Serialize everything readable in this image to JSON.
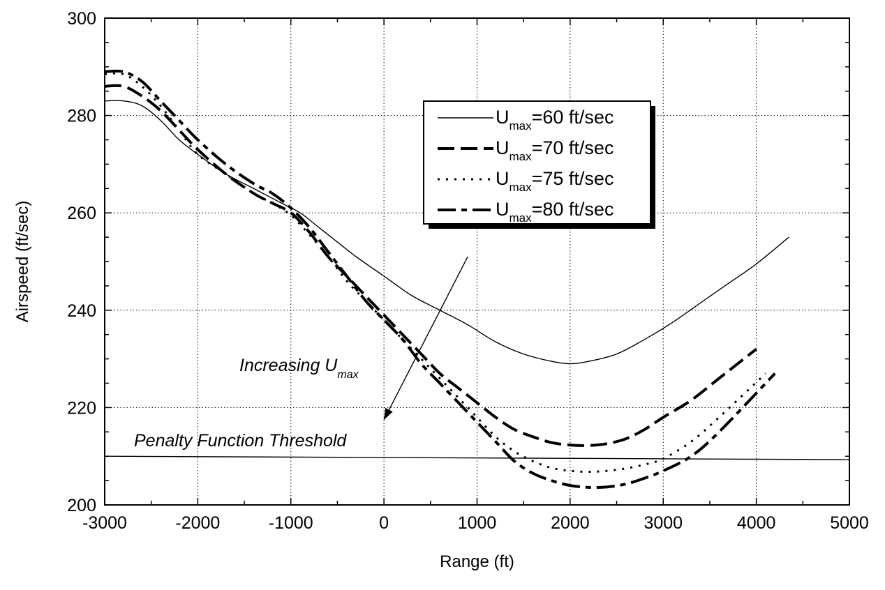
{
  "chart_data": {
    "type": "line",
    "title": "",
    "xlabel": "Range (ft)",
    "ylabel": "Airspeed (ft/sec)",
    "xlim": [
      -3000,
      5000
    ],
    "ylim": [
      200,
      300
    ],
    "xticks": [
      -3000,
      -2000,
      -1000,
      0,
      1000,
      2000,
      3000,
      4000,
      5000
    ],
    "yticks": [
      200,
      220,
      240,
      260,
      280,
      300
    ],
    "xtick_labels": [
      "-3000",
      "-2000",
      "-1000",
      "0",
      "1000",
      "2000",
      "3000",
      "4000",
      "5000"
    ],
    "ytick_labels": [
      "200",
      "220",
      "240",
      "260",
      "280",
      "300"
    ],
    "grid": true,
    "legend_position": "top-right",
    "series": [
      {
        "name": "U_max=60 ft/sec",
        "legend_main": "U",
        "legend_sub": "max",
        "legend_rest": "=60 ft/sec",
        "style": "solid",
        "x": [
          -3000,
          -2800,
          -2600,
          -2400,
          -2200,
          -2000,
          -1700,
          -1400,
          -1100,
          -900,
          -700,
          -500,
          -300,
          0,
          300,
          600,
          900,
          1200,
          1500,
          1800,
          2000,
          2200,
          2500,
          2800,
          3100,
          3400,
          3700,
          4000,
          4350
        ],
        "y": [
          283,
          283,
          282,
          279,
          275,
          272,
          268,
          265,
          262,
          260,
          257,
          254,
          251,
          247,
          243,
          240,
          237,
          233.5,
          231,
          229.5,
          229,
          229.5,
          231,
          234,
          237.5,
          241.5,
          245.5,
          249.5,
          255
        ]
      },
      {
        "name": "U_max=70 ft/sec",
        "legend_main": "U",
        "legend_sub": "max",
        "legend_rest": "=70 ft/sec",
        "style": "dashed",
        "x": [
          -3000,
          -2800,
          -2600,
          -2400,
          -2200,
          -2000,
          -1700,
          -1400,
          -1200,
          -1000,
          -800,
          -600,
          -400,
          -200,
          0,
          200,
          400,
          600,
          800,
          1000,
          1200,
          1400,
          1600,
          1800,
          2000,
          2200,
          2400,
          2600,
          2800,
          3000,
          3300,
          3600,
          4000
        ],
        "y": [
          286,
          286,
          284,
          281,
          277,
          273,
          268,
          264,
          262,
          260,
          256,
          251,
          247,
          243,
          239,
          235,
          231,
          227,
          224,
          221,
          218,
          215.5,
          214,
          212.8,
          212.3,
          212.2,
          212.6,
          213.6,
          215.5,
          218,
          221.5,
          226,
          232
        ]
      },
      {
        "name": "U_max=75 ft/sec",
        "legend_main": "U",
        "legend_sub": "max",
        "legend_rest": "=75 ft/sec",
        "style": "dotted",
        "x": [
          -3000,
          -2800,
          -2600,
          -2400,
          -2200,
          -2000,
          -1700,
          -1400,
          -1200,
          -1000,
          -800,
          -600,
          -400,
          -200,
          0,
          200,
          400,
          600,
          800,
          1000,
          1200,
          1400,
          1600,
          1800,
          2000,
          2200,
          2400,
          2600,
          2800,
          3000,
          3300,
          3600,
          4100
        ],
        "y": [
          288.5,
          288.5,
          286,
          282,
          277,
          272,
          268,
          264,
          262,
          259.5,
          255.5,
          251,
          246,
          242,
          238,
          234,
          230,
          226,
          222,
          218,
          214,
          211,
          209,
          207.6,
          207,
          206.8,
          207,
          207.5,
          208.3,
          209.5,
          213,
          218,
          227
        ]
      },
      {
        "name": "U_max=80 ft/sec",
        "legend_main": "U",
        "legend_sub": "max",
        "legend_rest": "=80 ft/sec",
        "style": "long-dash-short-dash",
        "x": [
          -3000,
          -2800,
          -2600,
          -2400,
          -2200,
          -2000,
          -1700,
          -1400,
          -1200,
          -1000,
          -800,
          -600,
          -400,
          -200,
          0,
          200,
          400,
          600,
          800,
          1000,
          1200,
          1400,
          1600,
          1800,
          2000,
          2200,
          2400,
          2600,
          2800,
          3000,
          3300,
          3600,
          4200
        ],
        "y": [
          289,
          289,
          287,
          283,
          279,
          275,
          270,
          266,
          264,
          261,
          257,
          252,
          247,
          242,
          238,
          234,
          229,
          225,
          221,
          217,
          213,
          209,
          206.5,
          205,
          204,
          203.6,
          203.7,
          204.3,
          205.5,
          207,
          210,
          215,
          227
        ]
      }
    ],
    "threshold": {
      "label": "Penalty Function Threshold",
      "x": [
        -3000,
        5000
      ],
      "y": [
        210,
        209.3
      ]
    },
    "annotation": {
      "text_main": "Increasing U",
      "text_sub": "max",
      "arrow_from": [
        900,
        251
      ],
      "arrow_to": [
        0,
        217.5
      ]
    }
  }
}
